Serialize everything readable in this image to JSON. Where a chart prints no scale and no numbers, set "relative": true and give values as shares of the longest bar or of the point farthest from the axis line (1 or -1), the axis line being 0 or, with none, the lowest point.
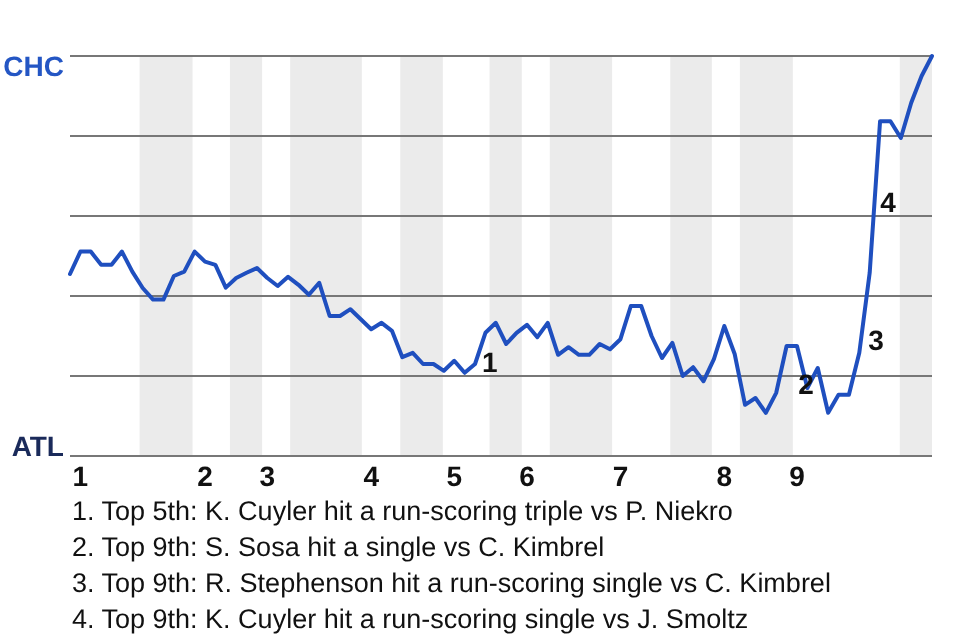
{
  "chart_data": {
    "type": "line",
    "relative": true,
    "categories": [
      null,
      "1",
      null,
      null,
      null,
      null,
      null,
      null,
      null,
      null,
      null,
      null,
      null,
      "2",
      null,
      null,
      null,
      null,
      null,
      "3",
      null,
      null,
      null,
      null,
      null,
      null,
      null,
      null,
      null,
      "4",
      null,
      null,
      null,
      null,
      null,
      null,
      null,
      "5",
      null,
      null,
      null,
      null,
      null,
      null,
      "6",
      null,
      null,
      null,
      null,
      null,
      null,
      null,
      null,
      "7",
      null,
      null,
      null,
      null,
      null,
      null,
      null,
      null,
      null,
      "8",
      null,
      null,
      null,
      null,
      null,
      null,
      "9",
      null,
      null,
      null,
      null,
      null,
      null,
      null,
      null,
      null,
      null,
      null,
      null,
      null
    ],
    "series": [
      {
        "color": "#1f4fbf",
        "values": [
          0.455,
          0.511,
          0.511,
          0.478,
          0.478,
          0.511,
          0.461,
          0.42,
          0.391,
          0.391,
          0.45,
          0.461,
          0.511,
          0.486,
          0.478,
          0.421,
          0.445,
          0.458,
          0.47,
          0.445,
          0.425,
          0.448,
          0.428,
          0.403,
          0.433,
          0.35,
          0.35,
          0.367,
          0.342,
          0.317,
          0.333,
          0.313,
          0.247,
          0.258,
          0.23,
          0.23,
          0.213,
          0.238,
          0.208,
          0.23,
          0.308,
          0.333,
          0.28,
          0.308,
          0.328,
          0.297,
          0.333,
          0.253,
          0.272,
          0.253,
          0.253,
          0.28,
          0.267,
          0.292,
          0.375,
          0.375,
          0.3,
          0.245,
          0.283,
          0.2,
          0.222,
          0.187,
          0.242,
          0.325,
          0.255,
          0.128,
          0.145,
          0.108,
          0.158,
          0.275,
          0.275,
          0.17,
          0.22,
          0.108,
          0.153,
          0.153,
          0.258,
          0.458,
          0.837,
          0.837,
          0.795,
          0.883,
          0.95,
          1
        ]
      }
    ],
    "grid": "y",
    "annotations": [
      "CHC",
      "ATL",
      "1",
      "2",
      "3",
      "4",
      "1. Top 5th: K. Cuyler hit a run-scoring triple vs P. Niekro",
      "2. Top 9th: S. Sosa hit a single vs C. Kimbrel",
      "3. Top 9th: R. Stephenson hit a run-scoring single vs C. Kimbrel",
      "4. Top 9th: K. Cuyler hit a run-scoring single vs J. Smoltz"
    ]
  }
}
